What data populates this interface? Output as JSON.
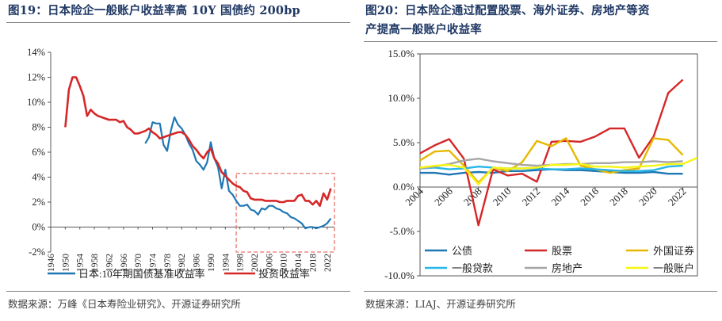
{
  "figures": [
    {
      "title": "图19：日本险企一般账户收益率高 10Y 国债约 200bp",
      "source": "数据来源：万峰《日本寿险业研究》、开源证券研究所"
    },
    {
      "title_line1": "图20：日本险企通过配置股票、海外证券、房地产等资",
      "title_line2": "产提高一般账户收益率",
      "source": "数据来源：LIAJ、开源证券研究所"
    }
  ],
  "chart_data": [
    {
      "type": "line",
      "title": "图19：日本险企一般账户收益率高 10Y 国债约 200bp",
      "y_ticks": [
        "14%",
        "12%",
        "10%",
        "8%",
        "6%",
        "4%",
        "2%",
        "0%",
        "-2%"
      ],
      "x_ticks": [
        "1946",
        "1950",
        "1954",
        "1958",
        "1962",
        "1966",
        "1970",
        "1974",
        "1978",
        "1982",
        "1986",
        "1990",
        "1994",
        "1998",
        "2002",
        "2006",
        "2010",
        "2014",
        "2018",
        "2022"
      ],
      "ylim": [
        -0.02,
        0.14
      ],
      "xlim": [
        1946,
        2024
      ],
      "highlight_box": {
        "x_range": [
          1997,
          2024
        ],
        "y_range": [
          -0.02,
          0.043
        ]
      },
      "series": [
        {
          "name": "日本:10年期国债基准收益率",
          "color": "#1f77b4",
          "x": [
            1972,
            1973,
            1974,
            1975,
            1976,
            1977,
            1978,
            1979,
            1980,
            1981,
            1982,
            1983,
            1984,
            1985,
            1986,
            1987,
            1988,
            1989,
            1990,
            1991,
            1992,
            1993,
            1994,
            1995,
            1996,
            1997,
            1998,
            1999,
            2000,
            2001,
            2002,
            2003,
            2004,
            2005,
            2006,
            2007,
            2008,
            2009,
            2010,
            2011,
            2012,
            2013,
            2014,
            2015,
            2016,
            2017,
            2018,
            2019,
            2020,
            2021,
            2022,
            2023
          ],
          "values": [
            0.067,
            0.072,
            0.084,
            0.083,
            0.083,
            0.066,
            0.061,
            0.077,
            0.088,
            0.082,
            0.079,
            0.074,
            0.067,
            0.062,
            0.053,
            0.05,
            0.046,
            0.052,
            0.068,
            0.055,
            0.048,
            0.031,
            0.046,
            0.029,
            0.026,
            0.021,
            0.017,
            0.017,
            0.018,
            0.014,
            0.013,
            0.01,
            0.015,
            0.014,
            0.017,
            0.017,
            0.015,
            0.014,
            0.012,
            0.011,
            0.008,
            0.007,
            0.005,
            0.003,
            -0.001,
            0.0,
            0.0,
            -0.001,
            0.0,
            0.001,
            0.003,
            0.007
          ]
        },
        {
          "name": "投资收益率",
          "color": "#d62728",
          "x": [
            1950,
            1951,
            1952,
            1953,
            1954,
            1955,
            1956,
            1957,
            1958,
            1959,
            1960,
            1961,
            1962,
            1963,
            1964,
            1965,
            1966,
            1967,
            1968,
            1969,
            1970,
            1971,
            1972,
            1973,
            1974,
            1975,
            1976,
            1977,
            1978,
            1979,
            1980,
            1981,
            1982,
            1983,
            1984,
            1985,
            1986,
            1987,
            1988,
            1989,
            1990,
            1991,
            1992,
            1993,
            1994,
            1995,
            1996,
            1997,
            1998,
            1999,
            2000,
            2001,
            2002,
            2003,
            2004,
            2005,
            2006,
            2007,
            2008,
            2009,
            2010,
            2011,
            2012,
            2013,
            2014,
            2015,
            2016,
            2017,
            2018,
            2019,
            2020,
            2021,
            2022,
            2023
          ],
          "values": [
            0.08,
            0.11,
            0.12,
            0.12,
            0.113,
            0.105,
            0.089,
            0.094,
            0.091,
            0.089,
            0.088,
            0.087,
            0.086,
            0.086,
            0.086,
            0.084,
            0.085,
            0.08,
            0.078,
            0.075,
            0.075,
            0.076,
            0.077,
            0.079,
            0.076,
            0.074,
            0.071,
            0.072,
            0.073,
            0.074,
            0.075,
            0.076,
            0.076,
            0.074,
            0.07,
            0.065,
            0.062,
            0.058,
            0.055,
            0.06,
            0.063,
            0.055,
            0.051,
            0.044,
            0.041,
            0.038,
            0.035,
            0.033,
            0.032,
            0.029,
            0.028,
            0.023,
            0.022,
            0.022,
            0.022,
            0.021,
            0.021,
            0.021,
            0.021,
            0.02,
            0.02,
            0.021,
            0.021,
            0.021,
            0.025,
            0.026,
            0.021,
            0.021,
            0.018,
            0.021,
            0.017,
            0.027,
            0.022,
            0.031
          ]
        }
      ]
    },
    {
      "type": "line",
      "title": "图20：日本险企通过配置股票、海外证券、房地产等资产提高一般账户收益率",
      "y_ticks": [
        "15.0%",
        "10.0%",
        "5.0%",
        "0.0%",
        "-5.0%",
        "-10.0%"
      ],
      "x_ticks": [
        "2004",
        "2006",
        "2008",
        "2010",
        "2012",
        "2014",
        "2016",
        "2018",
        "2020",
        "2022"
      ],
      "ylim": [
        -0.1,
        0.15
      ],
      "xlim": [
        2004,
        2023
      ],
      "series": [
        {
          "name": "公债",
          "color": "#1f77b4",
          "x": [
            2004,
            2005,
            2006,
            2007,
            2008,
            2009,
            2010,
            2011,
            2012,
            2013,
            2014,
            2015,
            2016,
            2017,
            2018,
            2019,
            2020,
            2021,
            2022
          ],
          "values": [
            0.016,
            0.016,
            0.014,
            0.016,
            0.017,
            0.016,
            0.018,
            0.018,
            0.019,
            0.02,
            0.019,
            0.019,
            0.018,
            0.017,
            0.016,
            0.016,
            0.017,
            0.015,
            0.015
          ]
        },
        {
          "name": "股票",
          "color": "#d62728",
          "x": [
            2004,
            2005,
            2006,
            2007,
            2008,
            2009,
            2010,
            2011,
            2012,
            2013,
            2014,
            2015,
            2016,
            2017,
            2018,
            2019,
            2020,
            2021,
            2022
          ],
          "values": [
            0.038,
            0.047,
            0.054,
            0.032,
            -0.043,
            0.02,
            0.013,
            0.015,
            0.006,
            0.051,
            0.052,
            0.051,
            0.057,
            0.066,
            0.066,
            0.033,
            0.057,
            0.106,
            0.121
          ]
        },
        {
          "name": "外国证券",
          "color": "#e6b800",
          "x": [
            2004,
            2005,
            2006,
            2007,
            2008,
            2009,
            2010,
            2011,
            2012,
            2013,
            2014,
            2015,
            2016,
            2017,
            2018,
            2019,
            2020,
            2021,
            2022
          ],
          "values": [
            0.03,
            0.04,
            0.041,
            0.024,
            0.005,
            0.022,
            0.018,
            0.028,
            0.052,
            0.046,
            0.055,
            0.024,
            0.02,
            0.016,
            0.019,
            0.021,
            0.055,
            0.053,
            0.036
          ]
        },
        {
          "name": "一般贷款",
          "color": "#29b6e8",
          "x": [
            2004,
            2005,
            2006,
            2007,
            2008,
            2009,
            2010,
            2011,
            2012,
            2013,
            2014,
            2015,
            2016,
            2017,
            2018,
            2019,
            2020,
            2021,
            2022
          ],
          "values": [
            0.021,
            0.022,
            0.02,
            0.021,
            0.023,
            0.022,
            0.021,
            0.021,
            0.021,
            0.02,
            0.02,
            0.021,
            0.02,
            0.019,
            0.018,
            0.018,
            0.019,
            0.023,
            0.024
          ]
        },
        {
          "name": "房地产",
          "color": "#a6a6a6",
          "x": [
            2004,
            2005,
            2006,
            2007,
            2008,
            2009,
            2010,
            2011,
            2012,
            2013,
            2014,
            2015,
            2016,
            2017,
            2018,
            2019,
            2020,
            2021,
            2022
          ],
          "values": [
            0.021,
            0.023,
            0.026,
            0.03,
            0.032,
            0.029,
            0.027,
            0.025,
            0.024,
            0.025,
            0.026,
            0.026,
            0.027,
            0.027,
            0.028,
            0.028,
            0.029,
            0.028,
            0.029
          ]
        },
        {
          "name": "一般账户",
          "color": "#f5f516",
          "x": [
            2004,
            2005,
            2006,
            2007,
            2008,
            2009,
            2010,
            2011,
            2012,
            2013,
            2014,
            2015,
            2016,
            2017,
            2018,
            2019,
            2020,
            2021,
            2022,
            2023
          ],
          "values": [
            0.022,
            0.024,
            0.025,
            0.022,
            0.003,
            0.022,
            0.021,
            0.021,
            0.022,
            0.025,
            0.025,
            0.026,
            0.023,
            0.023,
            0.022,
            0.023,
            0.024,
            0.026,
            0.026,
            0.033
          ]
        }
      ]
    }
  ]
}
